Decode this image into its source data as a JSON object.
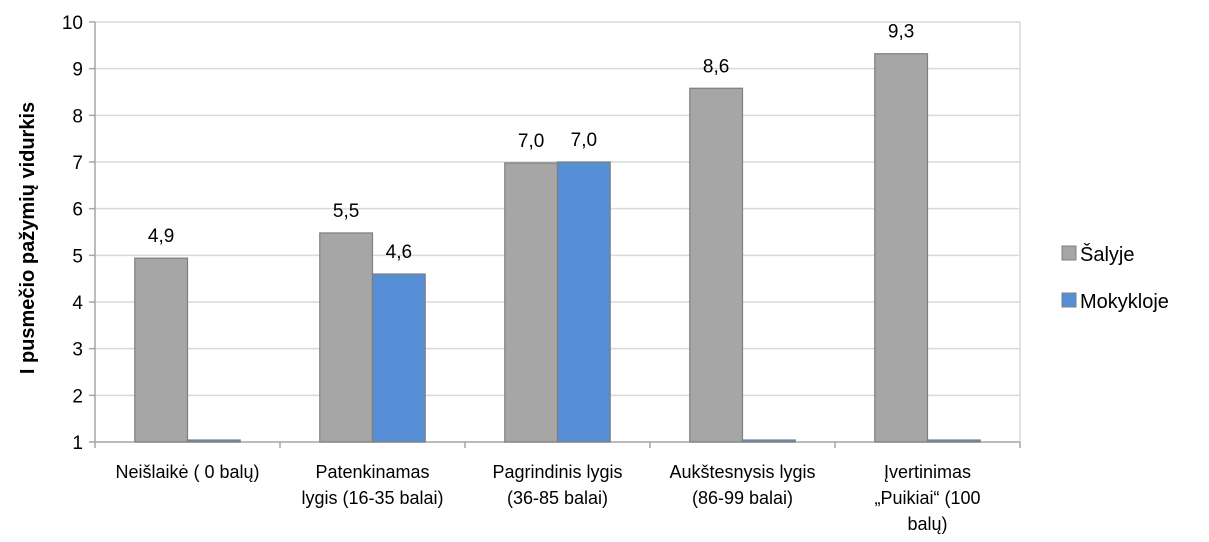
{
  "chart_data": {
    "type": "bar",
    "categories": [
      [
        "Neišlaikė ( 0 balų)"
      ],
      [
        "Patenkinamas",
        "lygis (16-35 balai)"
      ],
      [
        "Pagrindinis lygis",
        "(36-85 balai)"
      ],
      [
        "Aukštesnysis lygis",
        "(86-99 balai)"
      ],
      [
        "Įvertinimas",
        "„Puikiai“ (100",
        "balų)"
      ]
    ],
    "series": [
      {
        "name": "Šalyje",
        "color": "#a6a6a6",
        "values": [
          4.94,
          5.48,
          6.98,
          8.58,
          9.32
        ],
        "labels": [
          "4,9",
          "5,5",
          "7,0",
          "8,6",
          "9,3"
        ]
      },
      {
        "name": "Mokykloje",
        "color": "#568fd6",
        "values": [
          1.0,
          4.6,
          7.0,
          1.0,
          1.0
        ],
        "labels": [
          "",
          "4,6",
          "7,0",
          "",
          ""
        ]
      }
    ],
    "title": "",
    "xlabel": "",
    "ylabel": "I pusmečio pažymių vidurkis",
    "ylim": [
      1,
      10
    ],
    "yticks": [
      1,
      2,
      3,
      4,
      5,
      6,
      7,
      8,
      9,
      10
    ],
    "grid": true,
    "legend": "right"
  }
}
